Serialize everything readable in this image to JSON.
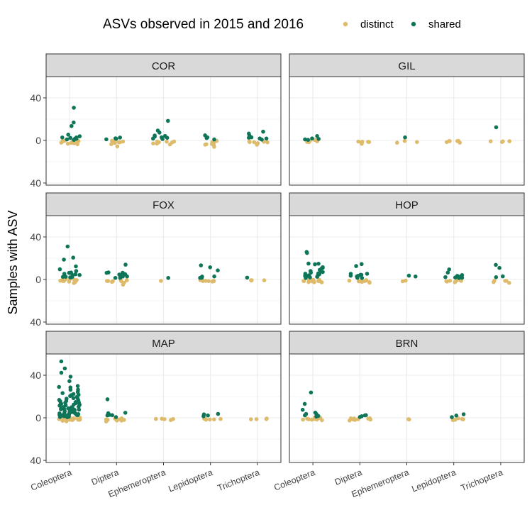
{
  "chart_data": {
    "type": "scatter",
    "title": "",
    "ylabel": "Samples with ASV",
    "xlabel": "",
    "legend": {
      "title": "ASVs observed in 2015 and 2016",
      "placement": "top",
      "entries": [
        {
          "key": "distinct",
          "label": "distinct",
          "color": "#DDBB6B"
        },
        {
          "key": "shared",
          "label": "shared",
          "color": "#0F7558"
        }
      ]
    },
    "categories": [
      "Coleoptera",
      "Diptera",
      "Ephemeroptera",
      "Lepidoptera",
      "Trichoptera"
    ],
    "y_ticks": [
      40,
      0,
      40
    ],
    "y_tick_values": [
      40,
      0,
      -40
    ],
    "ylim": [
      -42,
      60
    ],
    "panels": [
      {
        "site": "COR",
        "groups": [
          {
            "category": "Coleoptera",
            "distinct": [
              -1,
              -2,
              0,
              -1,
              -3,
              -1,
              0,
              -2,
              -1,
              -4,
              -2,
              -1,
              0,
              -1,
              -3
            ],
            "shared": [
              2,
              3,
              1,
              4,
              2,
              5,
              3,
              2,
              1,
              14,
              17,
              31
            ]
          },
          {
            "category": "Diptera",
            "distinct": [
              -1,
              -2,
              -1,
              -3,
              -1,
              0,
              -2,
              -1,
              -6,
              -2
            ],
            "shared": [
              1,
              2,
              3,
              1
            ]
          },
          {
            "category": "Ephemeroptera",
            "distinct": [
              -1,
              -2,
              -3,
              -1,
              -4,
              -2,
              -1,
              -3
            ],
            "shared": [
              2,
              4,
              3,
              5,
              1,
              7,
              9,
              3,
              2,
              18
            ]
          },
          {
            "category": "Lepidoptera",
            "distinct": [
              -1,
              -2,
              -3,
              -4,
              -2,
              -6,
              -5,
              -1,
              -3
            ],
            "shared": [
              1,
              2,
              3,
              5
            ]
          },
          {
            "category": "Trichoptera",
            "distinct": [
              -1,
              -2,
              -3,
              -1,
              -4,
              -2,
              -1
            ],
            "shared": [
              2,
              3,
              5,
              8,
              1,
              3,
              2,
              6
            ]
          }
        ]
      },
      {
        "site": "GIL",
        "groups": [
          {
            "category": "Coleoptera",
            "distinct": [
              -1,
              -1,
              0,
              -1,
              -2,
              -1,
              0,
              -1
            ],
            "shared": [
              1,
              2,
              1,
              2,
              4
            ]
          },
          {
            "category": "Diptera",
            "distinct": [
              -2,
              -1,
              -3,
              -2,
              -1,
              -1
            ],
            "shared": []
          },
          {
            "category": "Ephemeroptera",
            "distinct": [
              -2,
              -1,
              -1
            ],
            "shared": [
              3
            ]
          },
          {
            "category": "Lepidoptera",
            "distinct": [
              -2,
              -1,
              -1,
              -2,
              -1,
              -1
            ],
            "shared": []
          },
          {
            "category": "Trichoptera",
            "distinct": [
              -1,
              -1,
              -1,
              -1
            ],
            "shared": [
              12
            ]
          }
        ]
      },
      {
        "site": "FOX",
        "groups": [
          {
            "category": "Coleoptera",
            "distinct": [
              -1,
              0,
              -1,
              -2,
              -1,
              0,
              -1,
              -3,
              -1,
              -2,
              0,
              -1,
              -2,
              -1
            ],
            "shared": [
              2,
              3,
              5,
              6,
              7,
              8,
              4,
              3,
              2,
              5,
              9,
              12,
              19,
              20,
              31,
              4,
              6,
              2
            ]
          },
          {
            "category": "Diptera",
            "distinct": [
              -1,
              -2,
              -1,
              -3,
              -1,
              -2,
              -5,
              -1,
              -2,
              -1
            ],
            "shared": [
              2,
              3,
              4,
              5,
              6,
              7,
              3,
              2,
              14,
              4,
              6
            ]
          },
          {
            "category": "Ephemeroptera",
            "distinct": [
              -1
            ],
            "shared": [
              2
            ]
          },
          {
            "category": "Lepidoptera",
            "distinct": [
              -1,
              -2,
              -1,
              -1,
              -2,
              -1,
              -1
            ],
            "shared": [
              2,
              3,
              9,
              11,
              13,
              3,
              2
            ]
          },
          {
            "category": "Trichoptera",
            "distinct": [
              -1,
              -1,
              -1,
              -1
            ],
            "shared": [
              2
            ]
          }
        ]
      },
      {
        "site": "HOP",
        "groups": [
          {
            "category": "Coleoptera",
            "distinct": [
              -1,
              0,
              -1,
              -2,
              -1,
              0,
              -1,
              -3,
              -1,
              -2,
              0,
              -1,
              -2,
              -1,
              -3,
              -2
            ],
            "shared": [
              2,
              3,
              4,
              5,
              6,
              7,
              8,
              9,
              10,
              12,
              14,
              15,
              3,
              4,
              5,
              2,
              6,
              8,
              11,
              25,
              26,
              3,
              4,
              2,
              15
            ]
          },
          {
            "category": "Diptera",
            "distinct": [
              -1,
              -2,
              -1,
              -3,
              -1,
              -2,
              -1,
              -2,
              -1
            ],
            "shared": [
              2,
              3,
              4,
              5,
              6,
              2,
              3,
              4,
              12,
              14,
              3,
              5
            ]
          },
          {
            "category": "Ephemeroptera",
            "distinct": [
              -1,
              -2
            ],
            "shared": [
              3,
              4
            ]
          },
          {
            "category": "Lepidoptera",
            "distinct": [
              -1,
              -2,
              -1,
              -1,
              -2,
              -1,
              -1,
              -2
            ],
            "shared": [
              2,
              3,
              2,
              4,
              6,
              9,
              3,
              2,
              1
            ]
          },
          {
            "category": "Trichoptera",
            "distinct": [
              -1,
              -2,
              -1,
              -3,
              -1
            ],
            "shared": [
              2,
              3,
              11,
              14
            ]
          }
        ]
      },
      {
        "site": "MAP",
        "groups": [
          {
            "category": "Coleoptera",
            "distinct": [
              -1,
              0,
              -1,
              -2,
              -1,
              0,
              -1,
              -3,
              -1,
              -2,
              0,
              -1,
              -2,
              -1,
              -3,
              -2,
              -1,
              0,
              -1,
              -2,
              -1,
              -2,
              -1,
              0
            ],
            "shared": [
              1,
              2,
              3,
              4,
              5,
              6,
              7,
              8,
              9,
              10,
              11,
              12,
              13,
              14,
              15,
              16,
              18,
              20,
              22,
              24,
              26,
              28,
              30,
              2,
              3,
              4,
              5,
              6,
              7,
              8,
              9,
              10,
              12,
              14,
              16,
              18,
              20,
              22,
              25,
              29,
              35,
              39,
              42,
              46,
              53,
              1,
              2,
              3,
              4,
              5,
              6,
              8,
              10,
              12,
              14,
              3,
              5,
              7,
              9,
              11,
              13,
              15,
              17,
              19,
              21,
              23,
              27,
              2,
              4,
              6,
              8,
              1,
              3,
              5,
              7
            ]
          },
          {
            "category": "Diptera",
            "distinct": [
              -1,
              -2,
              -1,
              -3,
              -1,
              -2,
              -1,
              -2,
              -1,
              -2,
              -1
            ],
            "shared": [
              2,
              3,
              4,
              5,
              18,
              2,
              1
            ]
          },
          {
            "category": "Ephemeroptera",
            "distinct": [
              -1,
              -2,
              -1,
              -1,
              -1
            ],
            "shared": []
          },
          {
            "category": "Lepidoptera",
            "distinct": [
              -1,
              -2,
              -1,
              -1,
              -2,
              -1
            ],
            "shared": [
              2,
              3,
              4,
              2
            ]
          },
          {
            "category": "Trichoptera",
            "distinct": [
              -1,
              -1,
              -1,
              -1
            ],
            "shared": []
          }
        ]
      },
      {
        "site": "BRN",
        "groups": [
          {
            "category": "Coleoptera",
            "distinct": [
              -1,
              0,
              -1,
              -2,
              -1,
              0,
              -1,
              -2,
              -1,
              -2
            ],
            "shared": [
              2,
              3,
              5,
              8,
              4,
              13,
              24,
              2,
              1
            ]
          },
          {
            "category": "Diptera",
            "distinct": [
              -1,
              -2,
              -1,
              -1,
              -2,
              -1,
              -1,
              -2,
              -1
            ],
            "shared": [
              1,
              2,
              3,
              1
            ]
          },
          {
            "category": "Ephemeroptera",
            "distinct": [
              -1,
              -1
            ],
            "shared": []
          },
          {
            "category": "Lepidoptera",
            "distinct": [
              -1,
              -2,
              -1,
              -1,
              -2
            ],
            "shared": [
              2,
              3,
              1
            ]
          },
          {
            "category": "Trichoptera",
            "distinct": [],
            "shared": []
          }
        ]
      }
    ]
  }
}
